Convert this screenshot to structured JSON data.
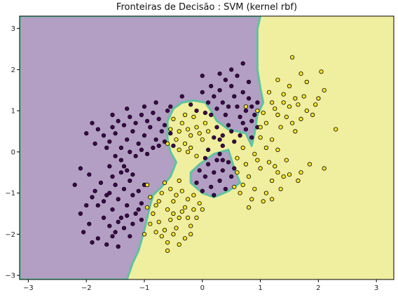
{
  "chart_data": {
    "type": "scatter",
    "title": "Fronteiras de Decisão : SVM (kernel rbf)",
    "xlabel": "",
    "ylabel": "",
    "xlim": [
      -3.15,
      3.3
    ],
    "ylim": [
      -3.1,
      3.3
    ],
    "x_ticks": [
      -3,
      -2,
      -1,
      0,
      1,
      2,
      3
    ],
    "y_ticks": [
      -3,
      -2,
      -1,
      0,
      1,
      2,
      3
    ],
    "grid": false,
    "colors": {
      "region_class_0": "#b29fc3",
      "region_class_1": "#f0ee9f",
      "boundary": "#5fc2a2",
      "point_class_0": "#440154",
      "point_class_1": "#fde725",
      "point_edge": "#000000"
    },
    "decision_region_class_0_polygons": [
      [
        [
          -3.15,
          -3.1
        ],
        [
          -1.3,
          -3.1
        ],
        [
          -1.2,
          -2.7
        ],
        [
          -1.1,
          -2.4
        ],
        [
          -1.0,
          -1.9
        ],
        [
          -0.95,
          -1.6
        ],
        [
          -0.9,
          -1.3
        ],
        [
          -0.85,
          -1.05
        ],
        [
          -0.7,
          -0.85
        ],
        [
          -0.55,
          -0.6
        ],
        [
          -0.45,
          -0.25
        ],
        [
          -0.55,
          0.0
        ],
        [
          -0.6,
          0.3
        ],
        [
          -0.6,
          0.75
        ],
        [
          -0.5,
          1.05
        ],
        [
          -0.35,
          1.2
        ],
        [
          -0.15,
          1.25
        ],
        [
          0.05,
          1.2
        ],
        [
          0.15,
          1.0
        ],
        [
          0.25,
          0.75
        ],
        [
          0.45,
          0.55
        ],
        [
          0.75,
          0.45
        ],
        [
          0.85,
          0.15
        ],
        [
          0.9,
          0.45
        ],
        [
          0.95,
          0.9
        ],
        [
          1.05,
          1.2
        ],
        [
          1.0,
          1.55
        ],
        [
          0.95,
          2.0
        ],
        [
          0.95,
          2.6
        ],
        [
          0.95,
          3.0
        ],
        [
          1.0,
          3.3
        ],
        [
          -3.15,
          3.3
        ]
      ],
      [
        [
          -0.05,
          -0.3
        ],
        [
          0.2,
          -0.05
        ],
        [
          0.45,
          0.05
        ],
        [
          0.55,
          -0.4
        ],
        [
          0.65,
          -0.75
        ],
        [
          0.45,
          -0.95
        ],
        [
          0.2,
          -1.1
        ],
        [
          0.0,
          -1.0
        ],
        [
          -0.2,
          -0.75
        ],
        [
          -0.2,
          -0.5
        ]
      ]
    ],
    "series": [
      {
        "class": 0,
        "points": [
          [
            -1.9,
            -1.1
          ],
          [
            -1.8,
            -1.3
          ],
          [
            -1.7,
            -1.2
          ],
          [
            -1.6,
            -1.0
          ],
          [
            -1.55,
            -1.4
          ],
          [
            -1.5,
            -0.8
          ],
          [
            -1.45,
            -1.15
          ],
          [
            -1.4,
            -1.6
          ],
          [
            -1.35,
            -0.9
          ],
          [
            -1.3,
            -1.3
          ],
          [
            -1.25,
            -0.7
          ],
          [
            -1.2,
            -1.05
          ],
          [
            -1.15,
            -1.5
          ],
          [
            -1.1,
            -0.95
          ],
          [
            -1.05,
            -1.25
          ],
          [
            -1.0,
            -0.8
          ],
          [
            -1.7,
            -1.6
          ],
          [
            -1.6,
            -1.8
          ],
          [
            -1.5,
            -1.95
          ],
          [
            -1.45,
            -1.7
          ],
          [
            -1.35,
            -1.85
          ],
          [
            -1.3,
            -1.55
          ],
          [
            -1.25,
            -2.05
          ],
          [
            -1.2,
            -1.75
          ],
          [
            -1.1,
            -1.4
          ],
          [
            -1.05,
            -1.65
          ],
          [
            -2.0,
            -1.3
          ],
          [
            -2.1,
            -1.5
          ],
          [
            -1.95,
            -1.75
          ],
          [
            -1.85,
            -0.95
          ],
          [
            -1.75,
            -0.75
          ],
          [
            -1.65,
            -1.05
          ],
          [
            -1.55,
            -0.6
          ],
          [
            -1.4,
            -0.5
          ],
          [
            -1.3,
            -0.45
          ],
          [
            -1.2,
            -0.55
          ],
          [
            -1.8,
            -2.1
          ],
          [
            -1.65,
            -2.25
          ],
          [
            -1.55,
            -2.05
          ],
          [
            -1.45,
            -2.3
          ],
          [
            -2.05,
            -1.95
          ],
          [
            -1.9,
            -2.2
          ],
          [
            -1.4,
            0.1
          ],
          [
            -1.3,
            0.3
          ],
          [
            -1.2,
            0.5
          ],
          [
            -1.1,
            0.2
          ],
          [
            -1.0,
            0.4
          ],
          [
            -0.9,
            0.6
          ],
          [
            -0.8,
            0.3
          ],
          [
            -0.7,
            0.5
          ],
          [
            -1.35,
            0.65
          ],
          [
            -1.25,
            0.85
          ],
          [
            -1.15,
            0.7
          ],
          [
            -1.05,
            0.9
          ],
          [
            -0.95,
            0.75
          ],
          [
            -0.85,
            0.95
          ],
          [
            -0.75,
            0.8
          ],
          [
            -0.65,
            0.65
          ],
          [
            -1.5,
            0.45
          ],
          [
            -1.6,
            0.25
          ],
          [
            -1.45,
            0.75
          ],
          [
            -1.55,
            0.6
          ],
          [
            -1.7,
            0.4
          ],
          [
            -1.8,
            0.55
          ],
          [
            -1.65,
            0.1
          ],
          [
            -1.5,
            -0.1
          ],
          [
            -1.4,
            -0.2
          ],
          [
            -1.25,
            0.0
          ],
          [
            -1.15,
            -0.1
          ],
          [
            -1.05,
            0.05
          ],
          [
            -0.95,
            -0.05
          ],
          [
            -0.85,
            0.1
          ],
          [
            -0.75,
            0.15
          ],
          [
            -0.65,
            0.25
          ],
          [
            -1.9,
            0.7
          ],
          [
            -1.55,
            0.9
          ],
          [
            -1.3,
            1.05
          ],
          [
            -1.0,
            1.1
          ],
          [
            -0.8,
            1.2
          ],
          [
            -0.6,
            1.0
          ],
          [
            -0.55,
            0.45
          ],
          [
            -0.5,
            0.15
          ],
          [
            -1.6,
            -0.35
          ],
          [
            -2.1,
            -0.4
          ],
          [
            -2.2,
            -0.8
          ],
          [
            -1.95,
            -0.55
          ],
          [
            -1.85,
            0.2
          ],
          [
            -2.0,
            0.45
          ],
          [
            -1.35,
            -0.35
          ],
          [
            0.1,
            -0.3
          ],
          [
            0.2,
            -0.5
          ],
          [
            0.3,
            -0.7
          ],
          [
            0.05,
            -0.6
          ],
          [
            0.25,
            -0.2
          ],
          [
            0.35,
            -0.45
          ],
          [
            0.15,
            -0.85
          ],
          [
            0.4,
            -0.9
          ],
          [
            0.45,
            -0.25
          ],
          [
            0.5,
            -0.6
          ],
          [
            -0.05,
            -0.45
          ],
          [
            -0.1,
            -0.75
          ],
          [
            0.3,
            -0.05
          ],
          [
            0.1,
            0.05
          ],
          [
            0.55,
            -0.4
          ],
          [
            0.0,
            -0.95
          ],
          [
            0.2,
            -1.05
          ],
          [
            0.35,
            -0.2
          ],
          [
            0.05,
            -0.15
          ],
          [
            0.3,
            0.3
          ],
          [
            0.5,
            0.5
          ],
          [
            0.7,
            0.7
          ],
          [
            0.9,
            0.9
          ],
          [
            0.4,
            0.9
          ],
          [
            0.6,
            1.1
          ],
          [
            0.8,
            1.3
          ],
          [
            0.35,
            1.2
          ],
          [
            0.55,
            1.35
          ],
          [
            0.75,
            0.55
          ],
          [
            0.85,
            0.75
          ],
          [
            0.45,
            0.65
          ],
          [
            0.65,
            0.85
          ],
          [
            0.25,
            0.6
          ],
          [
            0.15,
            0.9
          ],
          [
            0.35,
            0.4
          ],
          [
            0.55,
            0.25
          ],
          [
            0.75,
            1.0
          ],
          [
            0.95,
            0.6
          ],
          [
            0.3,
            1.5
          ],
          [
            0.5,
            1.6
          ],
          [
            0.7,
            1.45
          ],
          [
            0.2,
            1.35
          ],
          [
            0.4,
            1.75
          ],
          [
            0.6,
            1.85
          ],
          [
            0.1,
            1.2
          ],
          [
            0.05,
            0.95
          ],
          [
            0.25,
            1.05
          ],
          [
            0.45,
            1.1
          ],
          [
            0.65,
            0.4
          ],
          [
            0.85,
            0.35
          ],
          [
            -0.1,
            1.0
          ],
          [
            -0.2,
            1.15
          ],
          [
            0.0,
            1.45
          ],
          [
            -0.35,
            1.35
          ],
          [
            -0.55,
            1.1
          ],
          [
            0.3,
            1.9
          ],
          [
            0.5,
            2.0
          ],
          [
            0.7,
            2.15
          ],
          [
            0.8,
            1.7
          ],
          [
            0.85,
            1.1
          ],
          [
            0.95,
            1.2
          ],
          [
            0.35,
            0.15
          ],
          [
            0.2,
            0.35
          ],
          [
            0.0,
            1.85
          ],
          [
            0.15,
            1.6
          ]
        ]
      },
      {
        "class": 1,
        "points": [
          [
            -0.9,
            -1.1
          ],
          [
            -0.8,
            -1.3
          ],
          [
            -0.7,
            -1.0
          ],
          [
            -0.6,
            -1.4
          ],
          [
            -0.5,
            -1.2
          ],
          [
            -0.4,
            -1.6
          ],
          [
            -0.3,
            -1.35
          ],
          [
            -0.2,
            -1.8
          ],
          [
            -0.85,
            -1.5
          ],
          [
            -0.75,
            -1.7
          ],
          [
            -0.65,
            -1.9
          ],
          [
            -0.55,
            -1.65
          ],
          [
            -0.45,
            -1.85
          ],
          [
            -0.35,
            -1.45
          ],
          [
            -0.25,
            -1.6
          ],
          [
            -0.15,
            -1.4
          ],
          [
            -0.95,
            -1.35
          ],
          [
            -0.9,
            -1.75
          ],
          [
            -0.8,
            -1.95
          ],
          [
            -0.7,
            -2.05
          ],
          [
            -0.6,
            -2.2
          ],
          [
            -0.5,
            -2.0
          ],
          [
            -0.4,
            -2.25
          ],
          [
            -0.3,
            -2.1
          ],
          [
            -1.0,
            -2.0
          ],
          [
            -0.55,
            -0.9
          ],
          [
            -0.45,
            -1.05
          ],
          [
            -0.35,
            -0.95
          ],
          [
            -0.25,
            -1.15
          ],
          [
            -0.15,
            -1.05
          ],
          [
            -0.05,
            -1.25
          ],
          [
            -0.65,
            -0.75
          ],
          [
            -0.75,
            -1.2
          ],
          [
            -0.5,
            -1.5
          ],
          [
            -0.2,
            -2.0
          ],
          [
            -0.1,
            -1.6
          ],
          [
            0.0,
            -1.4
          ],
          [
            -0.95,
            -0.8
          ],
          [
            -0.4,
            -0.7
          ],
          [
            -0.6,
            -2.4
          ],
          [
            -0.3,
            0.2
          ],
          [
            -0.2,
            0.4
          ],
          [
            -0.1,
            0.6
          ],
          [
            0.0,
            0.3
          ],
          [
            -0.4,
            0.5
          ],
          [
            -0.5,
            0.8
          ],
          [
            -0.3,
            0.9
          ],
          [
            -0.2,
            0.1
          ],
          [
            -0.1,
            -0.1
          ],
          [
            0.05,
            0.7
          ],
          [
            -0.45,
            0.3
          ],
          [
            -0.35,
            0.7
          ],
          [
            -0.25,
            0.55
          ],
          [
            -0.15,
            0.85
          ],
          [
            -0.05,
            0.45
          ],
          [
            0.1,
            0.5
          ],
          [
            -0.55,
            0.55
          ],
          [
            -0.6,
            0.2
          ],
          [
            -0.25,
            0.0
          ],
          [
            -0.4,
            0.05
          ],
          [
            0.6,
            -0.5
          ],
          [
            0.8,
            -0.6
          ],
          [
            1.0,
            -0.4
          ],
          [
            1.2,
            -0.7
          ],
          [
            0.7,
            -0.8
          ],
          [
            0.9,
            -0.9
          ],
          [
            1.1,
            -1.0
          ],
          [
            1.3,
            -0.5
          ],
          [
            0.75,
            -0.3
          ],
          [
            0.95,
            -0.2
          ],
          [
            1.15,
            -0.25
          ],
          [
            1.35,
            -0.9
          ],
          [
            0.65,
            -1.0
          ],
          [
            0.85,
            -1.15
          ],
          [
            1.05,
            -1.2
          ],
          [
            0.55,
            -0.85
          ],
          [
            1.25,
            -0.35
          ],
          [
            1.4,
            -0.6
          ],
          [
            0.9,
            -0.05
          ],
          [
            1.1,
            0.1
          ],
          [
            0.7,
            0.1
          ],
          [
            1.2,
            0.3
          ],
          [
            1.0,
            0.35
          ],
          [
            1.3,
            0.05
          ],
          [
            0.6,
            -0.15
          ],
          [
            0.8,
            -1.35
          ],
          [
            1.5,
            -0.55
          ],
          [
            1.45,
            -0.2
          ],
          [
            1.2,
            -1.15
          ],
          [
            1.7,
            -0.5
          ],
          [
            1.65,
            -0.7
          ],
          [
            1.85,
            -0.3
          ],
          [
            2.1,
            -0.4
          ],
          [
            1.1,
            0.7
          ],
          [
            1.3,
            0.9
          ],
          [
            1.5,
            1.1
          ],
          [
            1.7,
            0.8
          ],
          [
            1.2,
            1.2
          ],
          [
            1.4,
            1.4
          ],
          [
            1.6,
            1.3
          ],
          [
            1.8,
            1.0
          ],
          [
            1.05,
            0.95
          ],
          [
            1.25,
            1.05
          ],
          [
            1.45,
            0.85
          ],
          [
            1.65,
            1.15
          ],
          [
            1.35,
            0.6
          ],
          [
            1.55,
            0.7
          ],
          [
            1.75,
            1.35
          ],
          [
            1.9,
            0.9
          ],
          [
            2.0,
            1.3
          ],
          [
            1.15,
            1.45
          ],
          [
            1.5,
            1.6
          ],
          [
            1.8,
            1.7
          ],
          [
            1.3,
            1.75
          ],
          [
            1.7,
            1.9
          ],
          [
            2.1,
            1.5
          ],
          [
            1.55,
            2.3
          ],
          [
            2.05,
            1.95
          ],
          [
            1.0,
            0.6
          ],
          [
            1.6,
            0.5
          ],
          [
            2.3,
            0.55
          ],
          [
            1.95,
            1.15
          ],
          [
            1.4,
            1.2
          ],
          [
            0.95,
            1.0
          ],
          [
            0.75,
            1.1
          ]
        ]
      }
    ]
  }
}
